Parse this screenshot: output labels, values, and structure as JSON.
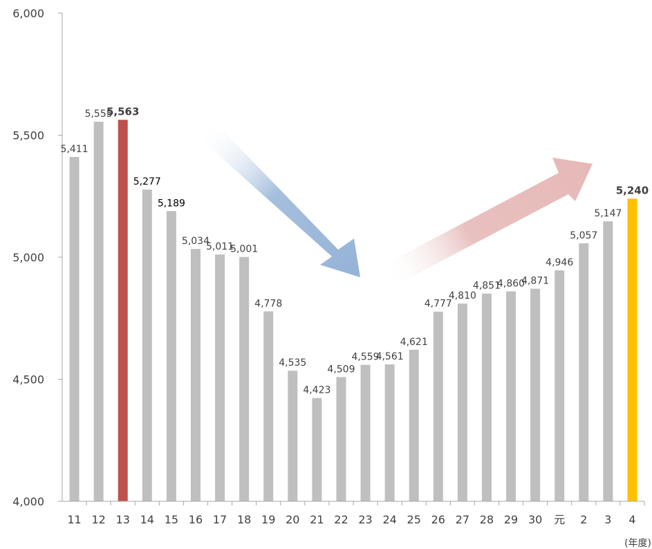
{
  "chart_data": {
    "type": "bar",
    "categories": [
      "11",
      "12",
      "13",
      "14",
      "15",
      "16",
      "17",
      "18",
      "19",
      "20",
      "21",
      "22",
      "23",
      "24",
      "25",
      "26",
      "27",
      "28",
      "29",
      "30",
      "元",
      "2",
      "3",
      "4"
    ],
    "values": [
      5411,
      5555,
      5563,
      5277,
      5189,
      5034,
      5011,
      5001,
      4778,
      4535,
      4423,
      4509,
      4559,
      4561,
      4621,
      4777,
      4810,
      4851,
      4860,
      4871,
      4946,
      5057,
      5147,
      5240
    ],
    "data_labels": [
      "5,411",
      "5,555",
      "5,563",
      "5,277",
      "5,189",
      "5,034",
      "5,011",
      "5,001",
      "4,778",
      "4,535",
      "4,423",
      "4,509",
      "4,559",
      "4,561",
      "4,621",
      "4,777",
      "4,810",
      "4,851",
      "4,860",
      "4,871",
      "4,946",
      "5,057",
      "5,147",
      "5,240"
    ],
    "y_ticks": [
      "4,000",
      "4,500",
      "5,000",
      "5,500",
      "6,000"
    ],
    "ylim": [
      4000,
      6000
    ],
    "x_unit": "(年度)",
    "grid": false,
    "colors": {
      "bar": "#bfbfbf",
      "highlight_max": "#c0504d",
      "highlight_last": "#ffc000",
      "arrow_down": "#95b3d7",
      "arrow_up": "#e6b9b8",
      "axis": "#a6a6a6"
    },
    "highlight_indices": {
      "max": 2,
      "last": 23
    },
    "dark_label_indices": [
      3,
      4
    ]
  }
}
